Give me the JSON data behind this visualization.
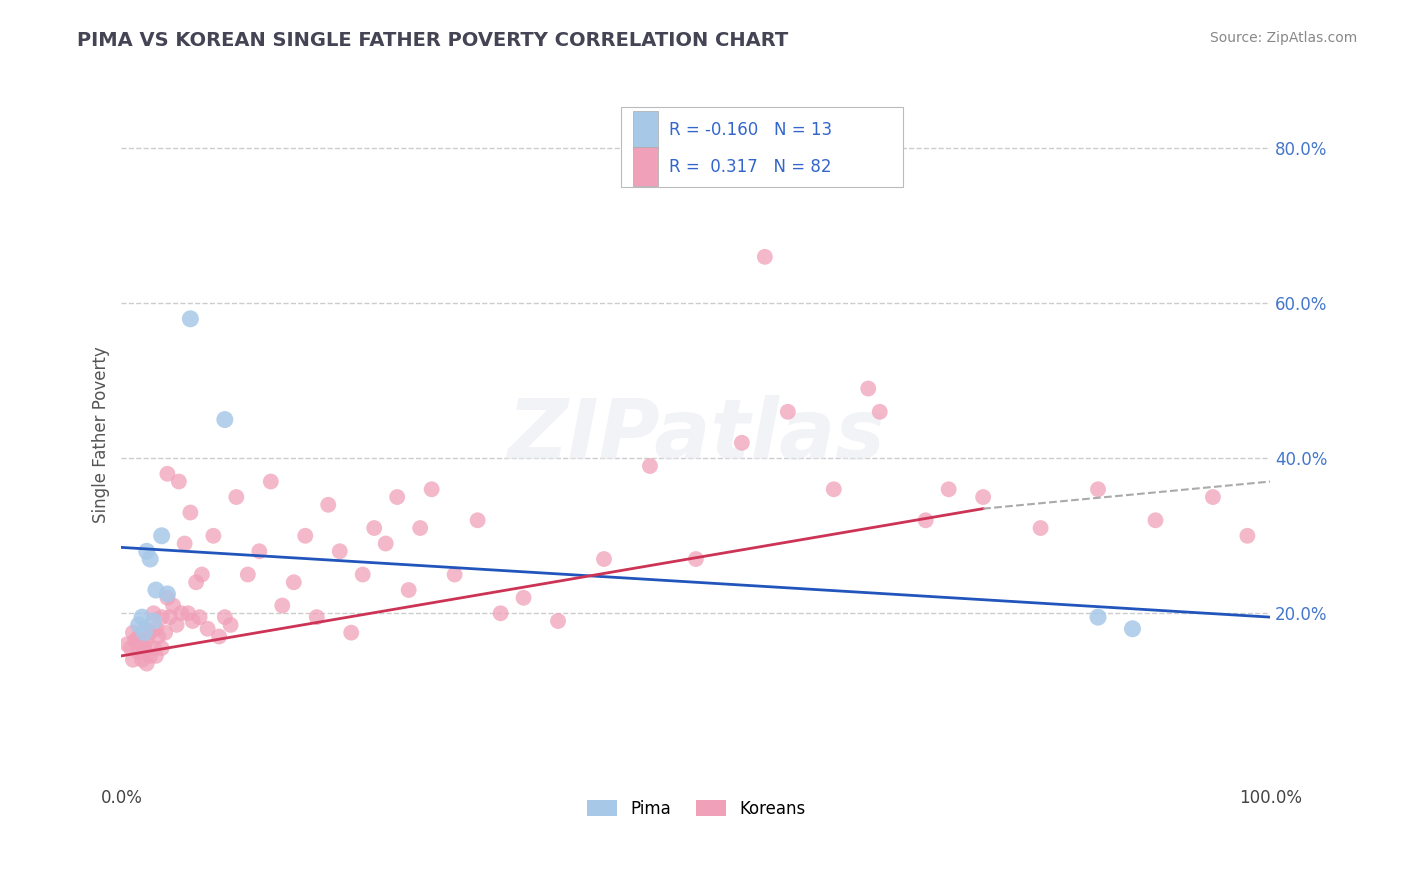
{
  "title": "PIMA VS KOREAN SINGLE FATHER POVERTY CORRELATION CHART",
  "source": "Source: ZipAtlas.com",
  "ylabel": "Single Father Poverty",
  "pima_R": -0.16,
  "pima_N": 13,
  "korean_R": 0.317,
  "korean_N": 82,
  "pima_color": "#a8c8e8",
  "korean_color": "#f0a0b8",
  "pima_line_color": "#2255bb",
  "korean_line_color": "#cc3355",
  "xlim": [
    0.0,
    1.0
  ],
  "ylim": [
    -0.02,
    0.88
  ],
  "pima_x": [
    0.015,
    0.018,
    0.02,
    0.022,
    0.025,
    0.028,
    0.03,
    0.035,
    0.04,
    0.06,
    0.09,
    0.85,
    0.88
  ],
  "pima_y": [
    0.185,
    0.195,
    0.175,
    0.28,
    0.27,
    0.19,
    0.23,
    0.3,
    0.225,
    0.58,
    0.45,
    0.195,
    0.18
  ],
  "korean_x": [
    0.005,
    0.008,
    0.01,
    0.01,
    0.012,
    0.015,
    0.015,
    0.018,
    0.018,
    0.02,
    0.02,
    0.022,
    0.022,
    0.025,
    0.025,
    0.028,
    0.028,
    0.03,
    0.03,
    0.032,
    0.035,
    0.035,
    0.038,
    0.04,
    0.04,
    0.042,
    0.045,
    0.048,
    0.05,
    0.052,
    0.055,
    0.058,
    0.06,
    0.062,
    0.065,
    0.068,
    0.07,
    0.075,
    0.08,
    0.085,
    0.09,
    0.095,
    0.1,
    0.11,
    0.12,
    0.13,
    0.14,
    0.15,
    0.16,
    0.17,
    0.18,
    0.19,
    0.2,
    0.21,
    0.22,
    0.23,
    0.24,
    0.25,
    0.26,
    0.27,
    0.29,
    0.31,
    0.33,
    0.35,
    0.38,
    0.42,
    0.46,
    0.5,
    0.54,
    0.58,
    0.56,
    0.62,
    0.66,
    0.7,
    0.75,
    0.8,
    0.85,
    0.9,
    0.95,
    0.98,
    0.65,
    0.72
  ],
  "korean_y": [
    0.16,
    0.155,
    0.175,
    0.14,
    0.165,
    0.17,
    0.15,
    0.16,
    0.14,
    0.18,
    0.155,
    0.165,
    0.135,
    0.175,
    0.145,
    0.2,
    0.155,
    0.18,
    0.145,
    0.17,
    0.195,
    0.155,
    0.175,
    0.38,
    0.22,
    0.195,
    0.21,
    0.185,
    0.37,
    0.2,
    0.29,
    0.2,
    0.33,
    0.19,
    0.24,
    0.195,
    0.25,
    0.18,
    0.3,
    0.17,
    0.195,
    0.185,
    0.35,
    0.25,
    0.28,
    0.37,
    0.21,
    0.24,
    0.3,
    0.195,
    0.34,
    0.28,
    0.175,
    0.25,
    0.31,
    0.29,
    0.35,
    0.23,
    0.31,
    0.36,
    0.25,
    0.32,
    0.2,
    0.22,
    0.19,
    0.27,
    0.39,
    0.27,
    0.42,
    0.46,
    0.66,
    0.36,
    0.46,
    0.32,
    0.35,
    0.31,
    0.36,
    0.32,
    0.35,
    0.3,
    0.49,
    0.36
  ]
}
